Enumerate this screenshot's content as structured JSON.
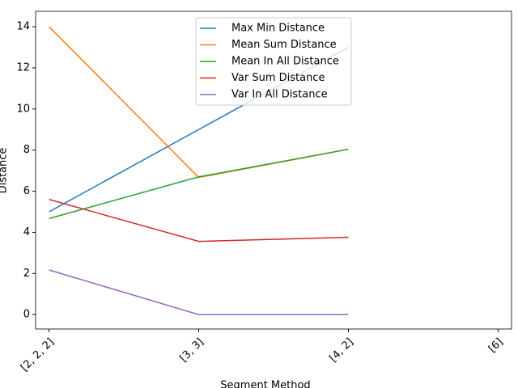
{
  "chart_data": {
    "type": "line",
    "xlabel": "Segment Method",
    "ylabel": "Distance",
    "categories": [
      "[2, 2, 2]",
      "[3, 3]",
      "[4, 2]",
      "[6]"
    ],
    "series": [
      {
        "name": "Max Min Distance",
        "color": "#1f77b4",
        "values": [
          5,
          9,
          13,
          null
        ]
      },
      {
        "name": "Mean Sum Distance",
        "color": "#ff7f0e",
        "values": [
          14,
          6.67,
          8.04,
          null
        ]
      },
      {
        "name": "Mean In All Distance",
        "color": "#2ca02c",
        "values": [
          4.67,
          6.7,
          8.04,
          null
        ]
      },
      {
        "name": "Var Sum Distance",
        "color": "#d62728",
        "values": [
          5.6,
          3.56,
          3.76,
          null
        ]
      },
      {
        "name": "Var In All Distance",
        "color": "#9467bd",
        "values": [
          2.17,
          0,
          0,
          null
        ]
      }
    ],
    "ylim": [
      -0.7,
      14.75
    ],
    "yticks": [
      0,
      2,
      4,
      6,
      8,
      10,
      12,
      14
    ],
    "legend": "upper center"
  }
}
